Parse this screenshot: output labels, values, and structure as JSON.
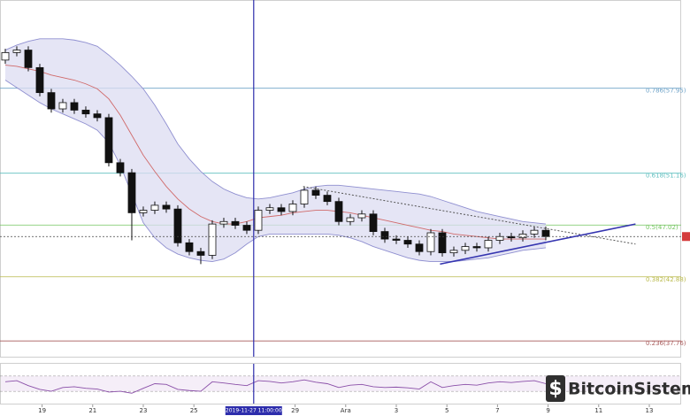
{
  "chart_data": {
    "type": "candlestick",
    "ylim": [
      36.5,
      65.0
    ],
    "xlim": [
      -0.46,
      58.77
    ],
    "series": {
      "open": [
        60.2,
        60.8,
        61.0,
        59.6,
        57.6,
        56.3,
        56.8,
        56.2,
        55.9,
        55.6,
        52.0,
        51.2,
        48.0,
        48.2,
        48.6,
        48.3,
        45.6,
        44.9,
        44.6,
        47.1,
        47.3,
        47.0,
        46.6,
        48.2,
        48.4,
        48.1,
        48.7,
        49.8,
        49.4,
        48.9,
        47.3,
        47.6,
        47.9,
        46.5,
        45.9,
        45.8,
        45.5,
        44.9,
        46.4,
        44.8,
        45.0,
        45.3,
        45.2,
        45.8,
        46.1,
        46.0,
        46.3,
        46.6
      ],
      "high": [
        61.1,
        61.3,
        61.3,
        59.9,
        57.9,
        57.1,
        57.1,
        56.5,
        56.2,
        55.9,
        52.3,
        51.5,
        48.5,
        48.9,
        48.9,
        48.6,
        45.9,
        45.2,
        47.4,
        47.6,
        47.6,
        47.3,
        48.5,
        48.7,
        48.7,
        49.0,
        50.1,
        50.1,
        49.7,
        49.2,
        47.9,
        48.2,
        48.2,
        46.8,
        46.2,
        46.1,
        45.8,
        46.7,
        46.7,
        45.3,
        45.6,
        45.6,
        46.1,
        46.4,
        46.4,
        46.6,
        46.9,
        46.9
      ],
      "low": [
        59.9,
        60.5,
        59.3,
        57.3,
        56.0,
        56.0,
        55.9,
        55.6,
        55.3,
        51.7,
        50.9,
        45.8,
        47.7,
        47.9,
        48.0,
        45.3,
        44.6,
        43.9,
        44.3,
        46.8,
        46.7,
        46.3,
        46.3,
        47.9,
        47.8,
        47.8,
        48.4,
        49.1,
        48.6,
        47.0,
        47.0,
        47.3,
        46.2,
        45.6,
        45.5,
        45.2,
        44.6,
        44.6,
        44.5,
        44.5,
        44.7,
        44.9,
        44.9,
        45.5,
        45.7,
        45.7,
        46.0,
        45.8
      ],
      "close": [
        60.8,
        61.0,
        59.6,
        57.6,
        56.3,
        56.8,
        56.2,
        55.9,
        55.6,
        52.0,
        51.2,
        48.0,
        48.2,
        48.6,
        48.3,
        45.6,
        44.9,
        44.6,
        47.1,
        47.3,
        47.0,
        46.6,
        48.2,
        48.4,
        48.1,
        48.7,
        49.8,
        49.4,
        48.9,
        47.3,
        47.6,
        47.9,
        46.5,
        45.9,
        45.8,
        45.5,
        44.9,
        46.4,
        44.8,
        45.0,
        45.3,
        45.2,
        45.8,
        46.1,
        46.0,
        46.3,
        46.6,
        46.1
      ]
    },
    "bands": {
      "upper": [
        61.0,
        61.4,
        61.7,
        61.9,
        61.9,
        61.9,
        61.8,
        61.6,
        61.3,
        60.6,
        59.8,
        58.9,
        57.9,
        56.6,
        55.1,
        53.5,
        52.3,
        51.3,
        50.5,
        49.9,
        49.5,
        49.2,
        49.1,
        49.2,
        49.4,
        49.6,
        49.9,
        50.1,
        50.2,
        50.2,
        50.1,
        50.0,
        49.9,
        49.8,
        49.7,
        49.6,
        49.5,
        49.3,
        49.0,
        48.7,
        48.4,
        48.1,
        47.9,
        47.7,
        47.5,
        47.3,
        47.2,
        47.1
      ],
      "middle": [
        59.8,
        59.7,
        59.5,
        59.3,
        59.0,
        58.8,
        58.6,
        58.3,
        57.9,
        57.1,
        55.8,
        54.2,
        52.6,
        51.3,
        50.1,
        49.1,
        48.3,
        47.7,
        47.3,
        47.1,
        47.1,
        47.3,
        47.6,
        47.7,
        47.8,
        48.0,
        48.1,
        48.2,
        48.2,
        48.1,
        48.0,
        47.8,
        47.6,
        47.4,
        47.2,
        47.0,
        46.8,
        46.6,
        46.5,
        46.3,
        46.2,
        46.1,
        46.0,
        45.9,
        45.9,
        45.9,
        45.9,
        45.9
      ],
      "lower": [
        58.6,
        58.0,
        57.4,
        56.8,
        56.3,
        55.9,
        55.5,
        55.1,
        54.6,
        53.6,
        51.8,
        49.5,
        47.2,
        46.0,
        45.2,
        44.7,
        44.4,
        44.2,
        44.1,
        44.3,
        44.8,
        45.5,
        46.1,
        46.3,
        46.3,
        46.3,
        46.3,
        46.3,
        46.3,
        46.2,
        46.0,
        45.7,
        45.3,
        45.0,
        44.7,
        44.4,
        44.2,
        44.1,
        44.1,
        44.1,
        44.2,
        44.3,
        44.4,
        44.6,
        44.8,
        45.0,
        45.1,
        45.2
      ]
    },
    "fib_levels": [
      {
        "value": 57.95,
        "label": "0.786(57.95)",
        "color": "#6fa3c8"
      },
      {
        "value": 51.16,
        "label": "0.618(51.16)",
        "color": "#5fbfbf"
      },
      {
        "value": 47.02,
        "label": "0.5(47.02)",
        "color": "#72c45e"
      },
      {
        "value": 42.88,
        "label": "0.382(42.88)",
        "color": "#b9b94a"
      },
      {
        "value": 37.76,
        "label": "0.236(37.76)",
        "color": "#a85a5a"
      }
    ],
    "trendlines": [
      {
        "start": [
          25.9,
          50.1
        ],
        "end": [
          54.8,
          45.5
        ],
        "style": "dotted",
        "color": "#555555"
      },
      {
        "start": [
          37.8,
          43.9
        ],
        "end": [
          54.8,
          47.1
        ],
        "style": "solid",
        "color": "#3535b0"
      }
    ],
    "xticks": [
      {
        "value": 3.2,
        "label": "19"
      },
      {
        "value": 7.6,
        "label": "21"
      },
      {
        "value": 12.0,
        "label": "23"
      },
      {
        "value": 16.4,
        "label": "25"
      },
      {
        "value": 25.2,
        "label": "29"
      },
      {
        "value": 29.6,
        "label": "Ara"
      },
      {
        "value": 34.0,
        "label": "3"
      },
      {
        "value": 38.4,
        "label": "5"
      },
      {
        "value": 42.8,
        "label": "7"
      },
      {
        "value": 47.2,
        "label": "9"
      },
      {
        "value": 51.6,
        "label": "11"
      },
      {
        "value": 56.0,
        "label": "13"
      }
    ],
    "crosshair_x": {
      "value": 21.6,
      "label": "2019-11-27 11:00:00"
    },
    "rsi": {
      "ylim": [
        0,
        100
      ],
      "levels": [
        30,
        70
      ],
      "values": [
        55,
        58,
        45,
        35,
        30,
        40,
        42,
        38,
        36,
        28,
        30,
        25,
        38,
        50,
        48,
        35,
        32,
        30,
        55,
        52,
        48,
        45,
        58,
        56,
        52,
        55,
        60,
        54,
        50,
        40,
        46,
        48,
        42,
        40,
        41,
        39,
        36,
        55,
        40,
        45,
        48,
        46,
        52,
        55,
        53,
        56,
        58,
        50
      ]
    },
    "watermark": "BitcoinSistemi"
  }
}
